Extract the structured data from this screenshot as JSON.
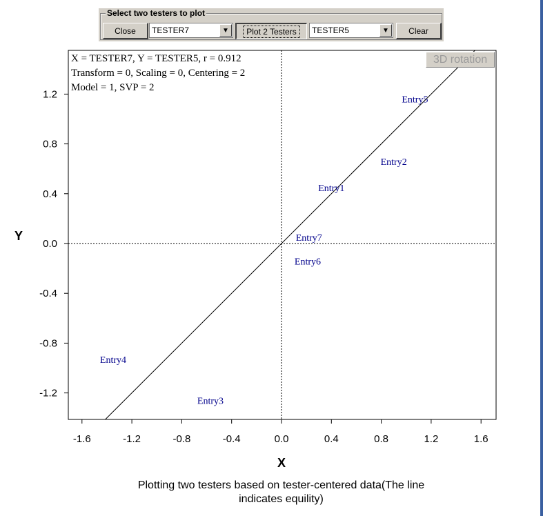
{
  "toolbar": {
    "group_title": "Select two testers to plot",
    "close_label": "Close",
    "x_tester": "TESTER7",
    "plot_label": "Plot 2 Testers",
    "y_tester": "TESTER5",
    "clear_label": "Clear",
    "dropdown_arrow": "▼"
  },
  "rotation_button": "3D rotation",
  "info": {
    "line1": "X = TESTER7, Y = TESTER5, r = 0.912",
    "line2": "Transform = 0, Scaling = 0, Centering = 2",
    "line3": "Model = 1, SVP = 2"
  },
  "caption": {
    "line1": "Plotting two testers based on tester-centered data(The line",
    "line2": "indicates equility)"
  },
  "chart_data": {
    "type": "scatter",
    "xlabel": "X",
    "ylabel": "Y",
    "xlim": [
      -1.7,
      1.7
    ],
    "ylim": [
      -1.4,
      1.55
    ],
    "xticks": [
      "-1.6",
      "-1.2",
      "-0.8",
      "-0.4",
      "0.0",
      "0.4",
      "0.8",
      "1.2",
      "1.6"
    ],
    "yticks": [
      "1.2",
      "0.8",
      "0.4",
      "0.0",
      "-0.4",
      "-0.8",
      "-1.2"
    ],
    "points": [
      {
        "label": "Entry1",
        "x": 0.4,
        "y": 0.45
      },
      {
        "label": "Entry2",
        "x": 0.9,
        "y": 0.66
      },
      {
        "label": "Entry3",
        "x": -0.57,
        "y": -1.26
      },
      {
        "label": "Entry4",
        "x": -1.35,
        "y": -0.93
      },
      {
        "label": "Entry5",
        "x": 1.07,
        "y": 1.16
      },
      {
        "label": "Entry6",
        "x": 0.21,
        "y": -0.14
      },
      {
        "label": "Entry7",
        "x": 0.22,
        "y": 0.05
      }
    ],
    "equality_line": true,
    "zero_lines": "dotted",
    "label_color": "#00008b"
  }
}
